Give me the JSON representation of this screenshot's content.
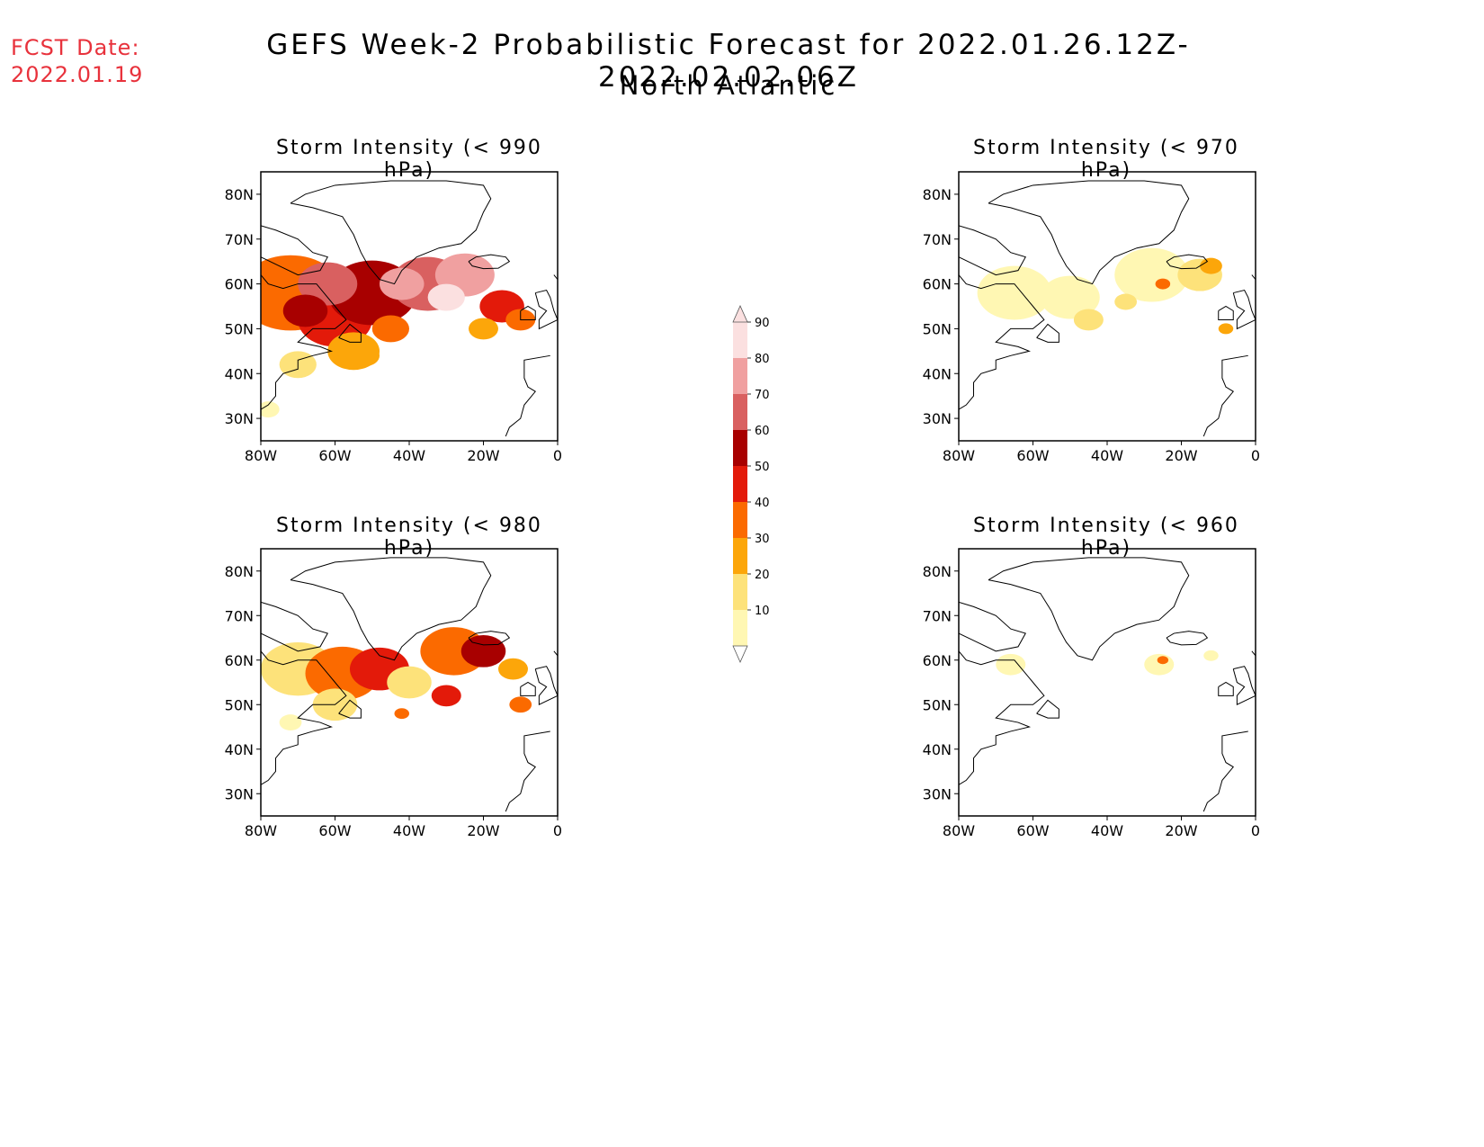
{
  "header": {
    "fcst_label": "FCST Date:",
    "fcst_date": "2022.01.19",
    "title": "GEFS Week-2 Probabilistic Forecast for 2022.01.26.12Z-2022.02.02.06Z",
    "subtitle": "North Atlantic"
  },
  "panels": [
    {
      "title": "Storm Intensity (< 990 hPa)",
      "intensity": "high"
    },
    {
      "title": "Storm Intensity (< 970 hPa)",
      "intensity": "low"
    },
    {
      "title": "Storm Intensity (< 980 hPa)",
      "intensity": "medium"
    },
    {
      "title": "Storm Intensity (< 960 hPa)",
      "intensity": "minimal"
    }
  ],
  "axes": {
    "lat_labels": [
      "80N",
      "70N",
      "60N",
      "50N",
      "40N",
      "30N"
    ],
    "lon_labels": [
      "80W",
      "60W",
      "40W",
      "20W",
      "0"
    ]
  },
  "colorbar": {
    "levels": [
      "10",
      "20",
      "30",
      "40",
      "50",
      "60",
      "70",
      "80",
      "90"
    ],
    "colors": [
      "#fff7b3",
      "#fde27a",
      "#fca60a",
      "#fb6a00",
      "#e31a0a",
      "#a80000",
      "#d96060",
      "#f0a0a0",
      "#fbe0e0"
    ]
  }
}
